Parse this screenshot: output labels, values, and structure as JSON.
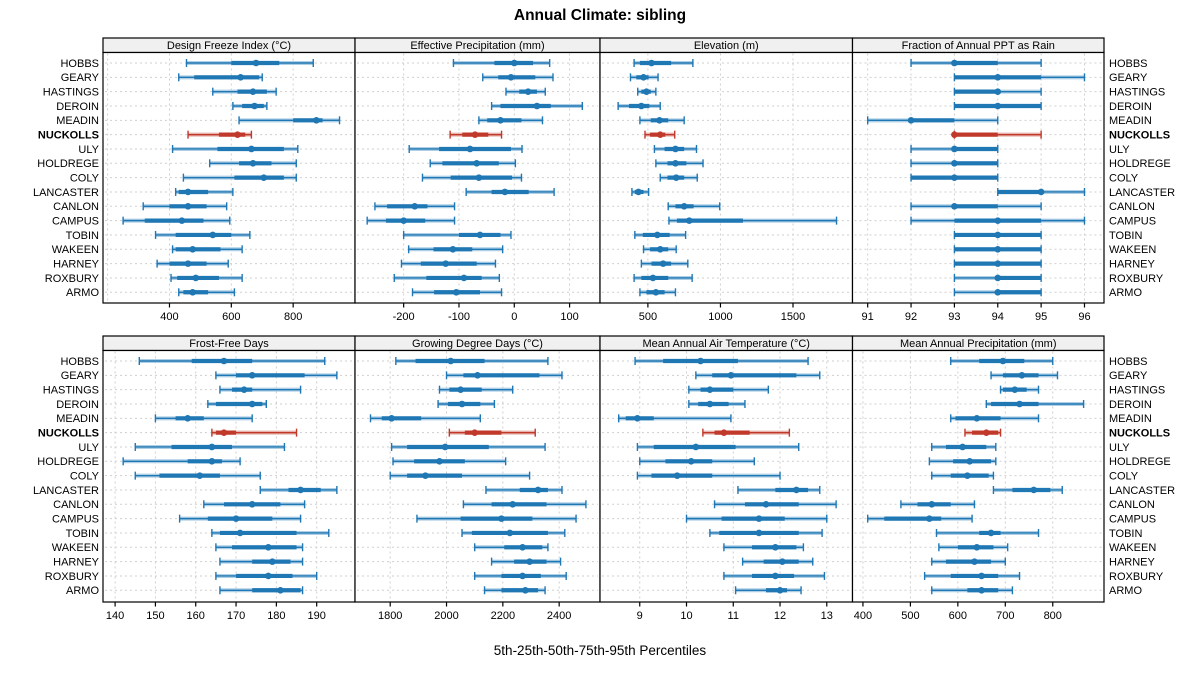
{
  "title": "Annual Climate: sibling",
  "caption": "5th-25th-50th-75th-95th Percentiles",
  "highlight_station": "NUCKOLLS",
  "colors": {
    "series": "#1f77b4",
    "series_light": "#aecfe6",
    "highlight": "#c0392b",
    "highlight_light": "#e5b3ac",
    "grid": "#cfcfcf",
    "header_bg": "#f0f0f0",
    "border": "#000000",
    "text": "#000000"
  },
  "stations": [
    "HOBBS",
    "GEARY",
    "HASTINGS",
    "DEROIN",
    "MEADIN",
    "NUCKOLLS",
    "ULY",
    "HOLDREGE",
    "COLY",
    "LANCASTER",
    "CANLON",
    "CAMPUS",
    "TOBIN",
    "WAKEEN",
    "HARNEY",
    "ROXBURY",
    "ARMO"
  ],
  "chart_data": [
    {
      "type": "dot-whisker",
      "title": "Design Freeze Index (°C)",
      "percentile_scheme": [
        5,
        25,
        50,
        75,
        95
      ],
      "xlim": [
        185,
        1000
      ],
      "ticks": [
        400,
        600,
        800
      ],
      "grid": [
        200,
        400,
        600,
        800
      ],
      "values": [
        [
          455,
          600,
          680,
          755,
          865
        ],
        [
          430,
          480,
          630,
          690,
          700
        ],
        [
          540,
          620,
          670,
          715,
          745
        ],
        [
          605,
          635,
          675,
          705,
          715
        ],
        [
          625,
          800,
          875,
          895,
          950
        ],
        [
          460,
          560,
          620,
          645,
          665
        ],
        [
          410,
          555,
          665,
          770,
          815
        ],
        [
          530,
          625,
          670,
          730,
          810
        ],
        [
          445,
          610,
          705,
          770,
          810
        ],
        [
          420,
          430,
          460,
          525,
          605
        ],
        [
          315,
          400,
          460,
          520,
          585
        ],
        [
          250,
          320,
          440,
          510,
          595
        ],
        [
          355,
          420,
          540,
          600,
          660
        ],
        [
          410,
          420,
          475,
          565,
          635
        ],
        [
          360,
          400,
          460,
          520,
          590
        ],
        [
          405,
          425,
          485,
          560,
          635
        ],
        [
          430,
          445,
          475,
          525,
          610
        ]
      ]
    },
    {
      "type": "dot-whisker",
      "title": "Effective Precipitation (mm)",
      "percentile_scheme": [
        5,
        25,
        50,
        75,
        95
      ],
      "xlim": [
        -288,
        155
      ],
      "ticks": [
        -200,
        -100,
        0,
        100
      ],
      "grid": [
        -200,
        -100,
        0,
        100
      ],
      "values": [
        [
          -110,
          -36,
          0,
          34,
          64
        ],
        [
          -57,
          -29,
          -6,
          38,
          70
        ],
        [
          -15,
          9,
          25,
          41,
          56
        ],
        [
          -41,
          -25,
          41,
          66,
          123
        ],
        [
          -64,
          -49,
          -25,
          13,
          51
        ],
        [
          -116,
          -94,
          -71,
          -47,
          -23
        ],
        [
          -190,
          -136,
          -80,
          -6,
          14
        ],
        [
          -152,
          -130,
          -68,
          -28,
          2
        ],
        [
          -166,
          -115,
          -64,
          -4,
          13
        ],
        [
          -87,
          -41,
          -17,
          26,
          72
        ],
        [
          -252,
          -230,
          -180,
          -157,
          -108
        ],
        [
          -266,
          -232,
          -200,
          -161,
          -108
        ],
        [
          -200,
          -100,
          -62,
          -25,
          -6
        ],
        [
          -191,
          -146,
          -111,
          -76,
          -21
        ],
        [
          -204,
          -169,
          -124,
          -68,
          -34
        ],
        [
          -217,
          -159,
          -91,
          -59,
          -27
        ],
        [
          -184,
          -145,
          -105,
          -62,
          -23
        ]
      ]
    },
    {
      "type": "dot-whisker",
      "title": "Elevation (m)",
      "percentile_scheme": [
        5,
        25,
        50,
        75,
        95
      ],
      "xlim": [
        170,
        1910
      ],
      "ticks": [
        500,
        1000,
        1500
      ],
      "grid": [
        500,
        1000,
        1500
      ],
      "values": [
        [
          405,
          445,
          525,
          660,
          810
        ],
        [
          380,
          420,
          470,
          505,
          570
        ],
        [
          430,
          455,
          490,
          520,
          555
        ],
        [
          295,
          370,
          455,
          510,
          585
        ],
        [
          445,
          520,
          580,
          640,
          750
        ],
        [
          480,
          515,
          585,
          620,
          685
        ],
        [
          545,
          615,
          690,
          750,
          835
        ],
        [
          555,
          635,
          690,
          765,
          880
        ],
        [
          585,
          635,
          695,
          750,
          840
        ],
        [
          390,
          410,
          435,
          470,
          505
        ],
        [
          640,
          690,
          750,
          815,
          995
        ],
        [
          645,
          700,
          785,
          1155,
          1800
        ],
        [
          410,
          465,
          565,
          650,
          760
        ],
        [
          470,
          515,
          585,
          640,
          695
        ],
        [
          455,
          525,
          605,
          660,
          775
        ],
        [
          405,
          455,
          535,
          640,
          805
        ],
        [
          445,
          490,
          555,
          615,
          690
        ]
      ]
    },
    {
      "type": "dot-whisker",
      "title": "Fraction of Annual PPT as Rain",
      "percentile_scheme": [
        5,
        25,
        50,
        75,
        95
      ],
      "xlim": [
        90.65,
        96.45
      ],
      "ticks": [
        91,
        92,
        93,
        94,
        95,
        96
      ],
      "grid": [
        91,
        92,
        93,
        94,
        95,
        96
      ],
      "values": [
        [
          92,
          93,
          93,
          94,
          95
        ],
        [
          93,
          93,
          94,
          95,
          96
        ],
        [
          93,
          93,
          94,
          94,
          95
        ],
        [
          93,
          93,
          94,
          95,
          95
        ],
        [
          91,
          92,
          92,
          93,
          94
        ],
        [
          93,
          93,
          93,
          94,
          95
        ],
        [
          92,
          93,
          93,
          94,
          94
        ],
        [
          92,
          93,
          93,
          94,
          94
        ],
        [
          92,
          92,
          93,
          94,
          94
        ],
        [
          94,
          94,
          95,
          95,
          96
        ],
        [
          92,
          93,
          93,
          94,
          95
        ],
        [
          92,
          93,
          94,
          95,
          96
        ],
        [
          93,
          93,
          94,
          95,
          95
        ],
        [
          93,
          93,
          94,
          95,
          95
        ],
        [
          93,
          93,
          94,
          95,
          95
        ],
        [
          93,
          94,
          94,
          95,
          95
        ],
        [
          93,
          94,
          94,
          95,
          95
        ]
      ]
    },
    {
      "type": "dot-whisker",
      "title": "Frost-Free Days",
      "percentile_scheme": [
        5,
        25,
        50,
        75,
        95
      ],
      "xlim": [
        137,
        199.5
      ],
      "ticks": [
        140,
        150,
        160,
        170,
        180,
        190
      ],
      "grid": [
        140,
        150,
        160,
        170,
        180,
        190
      ],
      "values": [
        [
          146,
          159,
          167,
          174,
          192
        ],
        [
          165,
          170,
          174,
          187,
          195
        ],
        [
          166,
          169,
          172,
          174,
          186
        ],
        [
          163,
          165,
          174,
          176.5,
          177.5
        ],
        [
          150,
          155,
          158,
          162,
          174
        ],
        [
          164,
          165,
          167,
          170,
          185
        ],
        [
          145,
          154,
          164,
          169,
          182
        ],
        [
          142,
          158,
          164,
          166.5,
          171
        ],
        [
          145,
          151,
          161,
          166,
          176
        ],
        [
          176,
          183,
          186,
          191,
          195
        ],
        [
          162,
          167,
          174,
          181,
          187
        ],
        [
          156,
          163,
          170,
          179,
          186
        ],
        [
          164,
          166,
          171,
          185,
          193
        ],
        [
          165,
          169,
          178,
          185,
          186.5
        ],
        [
          166,
          174,
          179,
          183.5,
          186.5
        ],
        [
          165,
          170,
          178,
          184,
          190
        ],
        [
          166,
          174,
          181,
          186,
          186.5
        ]
      ]
    },
    {
      "type": "dot-whisker",
      "title": "Growing Degree Days (°C)",
      "percentile_scheme": [
        5,
        25,
        50,
        75,
        95
      ],
      "xlim": [
        1675,
        2545
      ],
      "ticks": [
        1800,
        2000,
        2200,
        2400
      ],
      "grid": [
        1800,
        2000,
        2200,
        2400
      ],
      "values": [
        [
          1820,
          1890,
          2015,
          2135,
          2360
        ],
        [
          2000,
          2060,
          2110,
          2330,
          2410
        ],
        [
          1975,
          2010,
          2050,
          2125,
          2235
        ],
        [
          1970,
          2005,
          2055,
          2120,
          2170
        ],
        [
          1730,
          1770,
          1805,
          1910,
          2120
        ],
        [
          2010,
          2065,
          2100,
          2195,
          2315
        ],
        [
          1805,
          1860,
          1995,
          2150,
          2350
        ],
        [
          1810,
          1885,
          1975,
          2065,
          2210
        ],
        [
          1800,
          1860,
          1925,
          2055,
          2295
        ],
        [
          2140,
          2260,
          2325,
          2360,
          2410
        ],
        [
          2060,
          2160,
          2235,
          2355,
          2495
        ],
        [
          1895,
          2050,
          2195,
          2305,
          2460
        ],
        [
          2055,
          2090,
          2225,
          2360,
          2420
        ],
        [
          2100,
          2205,
          2270,
          2340,
          2360
        ],
        [
          2160,
          2240,
          2295,
          2355,
          2405
        ],
        [
          2100,
          2195,
          2270,
          2335,
          2425
        ],
        [
          2135,
          2195,
          2280,
          2325,
          2350
        ]
      ]
    },
    {
      "type": "dot-whisker",
      "title": "Mean Annual Air Temperature (°C)",
      "percentile_scheme": [
        5,
        25,
        50,
        75,
        95
      ],
      "xlim": [
        8.15,
        13.55
      ],
      "ticks": [
        9,
        10,
        11,
        12,
        13
      ],
      "grid": [
        9,
        10,
        11,
        12,
        13
      ],
      "values": [
        [
          8.9,
          9.5,
          10.3,
          11.1,
          12.6
        ],
        [
          10.2,
          10.55,
          10.95,
          12.35,
          12.85
        ],
        [
          10.05,
          10.3,
          10.5,
          11.0,
          11.75
        ],
        [
          10.05,
          10.25,
          10.5,
          10.9,
          11.25
        ],
        [
          8.55,
          8.7,
          8.95,
          9.3,
          10.95
        ],
        [
          10.35,
          10.6,
          10.8,
          11.35,
          12.2
        ],
        [
          8.95,
          9.3,
          10.2,
          11.05,
          12.4
        ],
        [
          9.0,
          9.55,
          10.1,
          10.55,
          11.45
        ],
        [
          8.95,
          9.25,
          9.8,
          10.55,
          12.0
        ],
        [
          11.1,
          11.9,
          12.35,
          12.6,
          12.85
        ],
        [
          10.6,
          11.25,
          11.7,
          12.4,
          13.2
        ],
        [
          10.0,
          10.75,
          11.55,
          12.1,
          13.0
        ],
        [
          10.5,
          10.7,
          11.55,
          12.4,
          12.9
        ],
        [
          10.8,
          11.4,
          11.9,
          12.35,
          12.5
        ],
        [
          11.2,
          11.65,
          12.05,
          12.4,
          12.7
        ],
        [
          10.8,
          11.4,
          11.9,
          12.3,
          12.95
        ],
        [
          11.05,
          11.7,
          12.0,
          12.15,
          12.45
        ]
      ]
    },
    {
      "type": "dot-whisker",
      "title": "Mean Annual Precipitation (mm)",
      "percentile_scheme": [
        5,
        25,
        50,
        75,
        95
      ],
      "xlim": [
        378,
        908
      ],
      "ticks": [
        400,
        500,
        600,
        700,
        800
      ],
      "grid": [
        400,
        500,
        600,
        700,
        800
      ],
      "values": [
        [
          585,
          645,
          695,
          740,
          800
        ],
        [
          670,
          695,
          735,
          770,
          810
        ],
        [
          690,
          695,
          720,
          745,
          770
        ],
        [
          660,
          670,
          730,
          770,
          865
        ],
        [
          585,
          595,
          640,
          690,
          770
        ],
        [
          615,
          630,
          660,
          685,
          690
        ],
        [
          545,
          575,
          610,
          660,
          680
        ],
        [
          540,
          590,
          625,
          670,
          680
        ],
        [
          545,
          585,
          620,
          665,
          675
        ],
        [
          675,
          715,
          760,
          795,
          820
        ],
        [
          480,
          515,
          545,
          585,
          635
        ],
        [
          410,
          445,
          540,
          565,
          630
        ],
        [
          555,
          645,
          670,
          690,
          770
        ],
        [
          560,
          600,
          640,
          675,
          705
        ],
        [
          545,
          575,
          635,
          670,
          700
        ],
        [
          530,
          585,
          650,
          685,
          730
        ],
        [
          545,
          620,
          650,
          685,
          715
        ]
      ]
    }
  ]
}
